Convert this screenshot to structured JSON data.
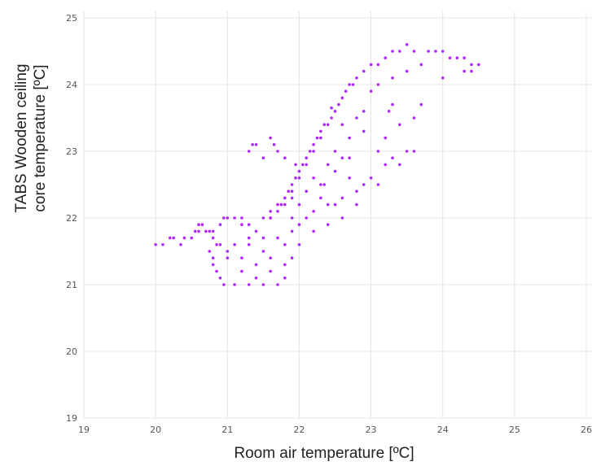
{
  "chart_data": {
    "type": "scatter",
    "title": "",
    "xlabel": "Room air temperature [ºC]",
    "ylabel_lines": [
      "TABS Wooden ceiling",
      "core temperature [ºC]"
    ],
    "xlim": [
      19,
      26
    ],
    "ylim": [
      19,
      25
    ],
    "x_ticks": [
      "19",
      "20",
      "21",
      "22",
      "23",
      "24",
      "25",
      "26"
    ],
    "y_ticks": [
      "19",
      "20",
      "21",
      "22",
      "23",
      "24",
      "25"
    ],
    "grid": true,
    "legend": "none",
    "marker_color": "#b026ff",
    "series": [
      {
        "points": [
          [
            20.0,
            21.6
          ],
          [
            20.1,
            21.6
          ],
          [
            20.2,
            21.7
          ],
          [
            20.25,
            21.7
          ],
          [
            20.35,
            21.6
          ],
          [
            20.4,
            21.7
          ],
          [
            20.5,
            21.7
          ],
          [
            20.55,
            21.8
          ],
          [
            20.6,
            21.8
          ],
          [
            20.6,
            21.9
          ],
          [
            20.65,
            21.9
          ],
          [
            20.7,
            21.8
          ],
          [
            20.75,
            21.8
          ],
          [
            20.8,
            21.8
          ],
          [
            20.8,
            21.7
          ],
          [
            20.85,
            21.6
          ],
          [
            20.9,
            21.9
          ],
          [
            20.95,
            22.0
          ],
          [
            21.0,
            22.0
          ],
          [
            21.1,
            22.0
          ],
          [
            21.2,
            22.0
          ],
          [
            21.3,
            21.9
          ],
          [
            21.4,
            21.8
          ],
          [
            21.5,
            22.0
          ],
          [
            21.6,
            22.0
          ],
          [
            21.6,
            22.1
          ],
          [
            21.7,
            22.1
          ],
          [
            21.7,
            22.2
          ],
          [
            21.75,
            22.2
          ],
          [
            21.8,
            22.2
          ],
          [
            21.8,
            22.3
          ],
          [
            21.85,
            22.4
          ],
          [
            21.9,
            22.4
          ],
          [
            21.9,
            22.5
          ],
          [
            21.95,
            22.6
          ],
          [
            22.0,
            22.6
          ],
          [
            22.0,
            22.7
          ],
          [
            22.05,
            22.8
          ],
          [
            22.1,
            22.8
          ],
          [
            22.1,
            22.9
          ],
          [
            22.15,
            23.0
          ],
          [
            22.2,
            23.0
          ],
          [
            22.2,
            23.1
          ],
          [
            22.25,
            23.2
          ],
          [
            22.3,
            23.2
          ],
          [
            22.3,
            23.3
          ],
          [
            22.35,
            23.4
          ],
          [
            22.4,
            23.4
          ],
          [
            22.45,
            23.5
          ],
          [
            22.5,
            23.6
          ],
          [
            22.55,
            23.7
          ],
          [
            22.6,
            23.8
          ],
          [
            22.65,
            23.9
          ],
          [
            22.7,
            24.0
          ],
          [
            22.75,
            24.0
          ],
          [
            22.8,
            24.1
          ],
          [
            22.9,
            24.2
          ],
          [
            23.0,
            24.3
          ],
          [
            23.1,
            24.3
          ],
          [
            23.2,
            24.4
          ],
          [
            23.3,
            24.5
          ],
          [
            23.4,
            24.5
          ],
          [
            23.5,
            24.6
          ],
          [
            23.6,
            24.5
          ],
          [
            23.8,
            24.5
          ],
          [
            23.9,
            24.5
          ],
          [
            24.0,
            24.5
          ],
          [
            24.1,
            24.4
          ],
          [
            24.2,
            24.4
          ],
          [
            24.3,
            24.4
          ],
          [
            24.4,
            24.3
          ],
          [
            24.5,
            24.3
          ],
          [
            24.4,
            24.2
          ],
          [
            24.3,
            24.2
          ],
          [
            24.0,
            24.1
          ],
          [
            23.7,
            23.7
          ],
          [
            23.6,
            23.5
          ],
          [
            23.6,
            23.0
          ],
          [
            23.5,
            23.0
          ],
          [
            23.3,
            22.9
          ],
          [
            23.2,
            22.8
          ],
          [
            23.0,
            22.6
          ],
          [
            22.9,
            22.5
          ],
          [
            22.8,
            22.4
          ],
          [
            22.6,
            22.3
          ],
          [
            22.5,
            22.2
          ],
          [
            22.4,
            22.2
          ],
          [
            22.2,
            22.1
          ],
          [
            22.1,
            22.0
          ],
          [
            22.0,
            21.9
          ],
          [
            21.9,
            21.8
          ],
          [
            21.8,
            21.6
          ],
          [
            21.8,
            21.3
          ],
          [
            21.8,
            21.1
          ],
          [
            21.7,
            21.0
          ],
          [
            21.5,
            21.0
          ],
          [
            21.3,
            21.0
          ],
          [
            21.1,
            21.0
          ],
          [
            20.95,
            21.0
          ],
          [
            20.9,
            21.1
          ],
          [
            20.85,
            21.2
          ],
          [
            20.8,
            21.3
          ],
          [
            20.8,
            21.4
          ],
          [
            20.75,
            21.5
          ],
          [
            21.0,
            21.5
          ],
          [
            21.2,
            21.4
          ],
          [
            21.4,
            21.3
          ],
          [
            21.6,
            21.2
          ],
          [
            21.1,
            21.6
          ],
          [
            21.3,
            21.6
          ],
          [
            21.5,
            21.7
          ],
          [
            21.9,
            22.0
          ],
          [
            22.3,
            22.3
          ],
          [
            22.7,
            22.6
          ],
          [
            23.1,
            23.0
          ],
          [
            23.4,
            23.4
          ],
          [
            23.3,
            23.7
          ],
          [
            23.0,
            23.9
          ],
          [
            22.8,
            23.5
          ],
          [
            22.5,
            23.0
          ],
          [
            22.2,
            22.6
          ],
          [
            21.9,
            22.3
          ],
          [
            21.6,
            22.0
          ],
          [
            21.3,
            21.7
          ],
          [
            21.0,
            21.4
          ],
          [
            20.9,
            21.6
          ],
          [
            21.2,
            21.9
          ],
          [
            21.5,
            21.5
          ],
          [
            21.7,
            21.7
          ],
          [
            22.0,
            22.2
          ],
          [
            22.4,
            22.8
          ],
          [
            22.7,
            23.2
          ],
          [
            22.9,
            23.6
          ],
          [
            23.1,
            24.0
          ],
          [
            23.3,
            24.1
          ],
          [
            23.5,
            24.2
          ],
          [
            23.7,
            24.3
          ],
          [
            22.6,
            22.9
          ],
          [
            22.3,
            22.5
          ],
          [
            22.1,
            22.4
          ],
          [
            21.95,
            22.8
          ],
          [
            21.8,
            22.9
          ],
          [
            21.7,
            23.0
          ],
          [
            21.65,
            23.1
          ],
          [
            21.6,
            23.2
          ],
          [
            21.5,
            22.9
          ],
          [
            21.3,
            23.0
          ],
          [
            21.35,
            23.1
          ],
          [
            21.4,
            23.1
          ],
          [
            22.6,
            23.4
          ],
          [
            23.2,
            23.2
          ],
          [
            23.4,
            22.8
          ],
          [
            23.1,
            22.5
          ],
          [
            22.8,
            22.2
          ],
          [
            22.6,
            22.0
          ],
          [
            22.4,
            21.9
          ],
          [
            22.2,
            21.8
          ],
          [
            22.0,
            21.6
          ],
          [
            21.9,
            21.4
          ],
          [
            21.6,
            21.4
          ],
          [
            21.4,
            21.1
          ],
          [
            21.2,
            21.2
          ],
          [
            22.45,
            23.65
          ],
          [
            22.9,
            23.3
          ],
          [
            23.25,
            23.6
          ],
          [
            22.7,
            22.9
          ],
          [
            22.5,
            22.7
          ],
          [
            22.35,
            22.5
          ]
        ]
      }
    ]
  }
}
